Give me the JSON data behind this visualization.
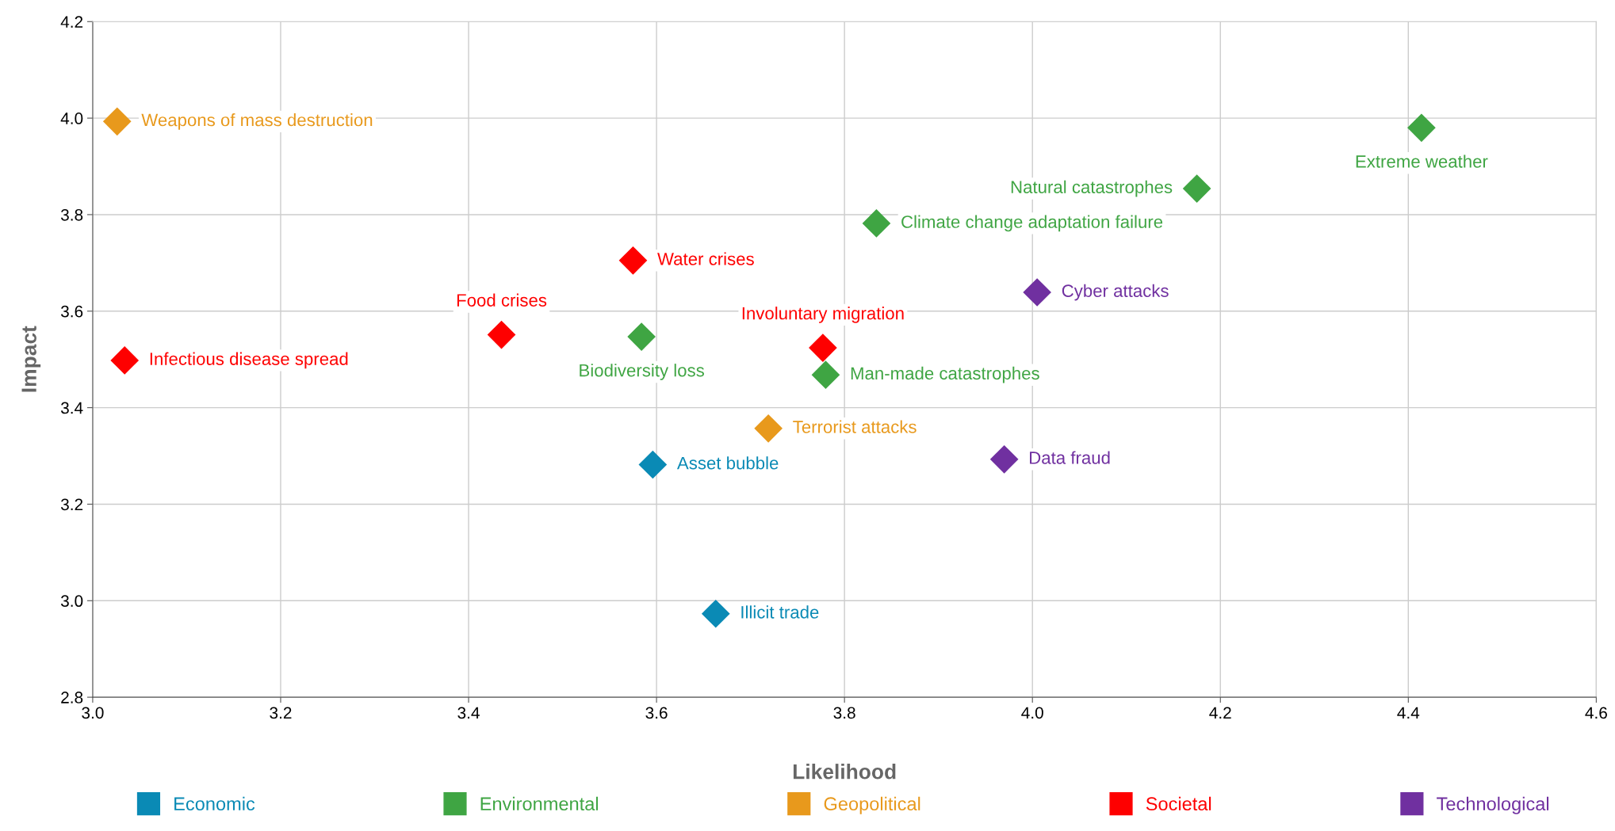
{
  "chart_data": {
    "type": "scatter",
    "xlabel": "Likelihood",
    "ylabel": "Impact",
    "xlim": [
      3.0,
      4.6
    ],
    "xticks": [
      {
        "value": 3.0,
        "label": "3.0"
      },
      3.2,
      3.4,
      3.6,
      3.8,
      {
        "value": 4.0,
        "label": "4.0"
      },
      4.2,
      4.4,
      4.6
    ],
    "ylim": [
      2.8,
      4.2
    ],
    "yticks": [
      2.8,
      {
        "value": 3.0,
        "label": "3.0"
      },
      3.2,
      3.4,
      3.6,
      3.8,
      {
        "value": 4.0,
        "label": "4.0"
      },
      4.2
    ],
    "grid": true,
    "legend": "bottom",
    "marker": "diamond",
    "series": [
      {
        "name": "Economic",
        "color": "#0a8ab5",
        "x": [
          3.596,
          3.663
        ],
        "values": [
          3.282,
          2.973
        ]
      },
      {
        "name": "Environmental",
        "color": "#3fa543",
        "x": [
          3.584,
          3.834,
          4.414,
          3.78,
          4.175
        ],
        "values": [
          3.547,
          3.782,
          3.98,
          3.468,
          3.854
        ]
      },
      {
        "name": "Geopolitical",
        "color": "#e8991c",
        "x": [
          3.026,
          3.719
        ],
        "values": [
          3.993,
          3.357
        ]
      },
      {
        "name": "Societal",
        "color": "#fe0000",
        "x": [
          3.435,
          3.034,
          3.777,
          3.575
        ],
        "values": [
          3.551,
          3.498,
          3.524,
          3.705
        ]
      },
      {
        "name": "Technological",
        "color": "#7030a0",
        "x": [
          4.005,
          3.97
        ],
        "values": [
          3.639,
          3.293
        ]
      }
    ],
    "annotations": [
      {
        "text": "Asset bubble",
        "x": 3.596,
        "y": 3.282
      },
      {
        "text": "Illicit trade",
        "x": 3.663,
        "y": 2.973
      },
      {
        "text": "Biodiversity loss",
        "x": 3.584,
        "y": 3.547
      },
      {
        "text": "Climate change adaptation failure",
        "x": 3.834,
        "y": 3.782
      },
      {
        "text": "Extreme weather",
        "x": 4.414,
        "y": 3.98
      },
      {
        "text": "Man-made catastrophes",
        "x": 3.78,
        "y": 3.468
      },
      {
        "text": "Natural catastrophes",
        "x": 4.175,
        "y": 3.854
      },
      {
        "text": "Weapons of mass destruction",
        "x": 3.026,
        "y": 3.993
      },
      {
        "text": "Terrorist attacks",
        "x": 3.719,
        "y": 3.357
      },
      {
        "text": "Food crises",
        "x": 3.435,
        "y": 3.551
      },
      {
        "text": "Infectious disease spread",
        "x": 3.034,
        "y": 3.498
      },
      {
        "text": "Involuntary migration",
        "x": 3.777,
        "y": 3.524
      },
      {
        "text": "Water crises",
        "x": 3.575,
        "y": 3.705
      },
      {
        "text": "Cyber attacks",
        "x": 4.005,
        "y": 3.639
      },
      {
        "text": "Data fraud",
        "x": 3.97,
        "y": 3.293
      }
    ]
  }
}
